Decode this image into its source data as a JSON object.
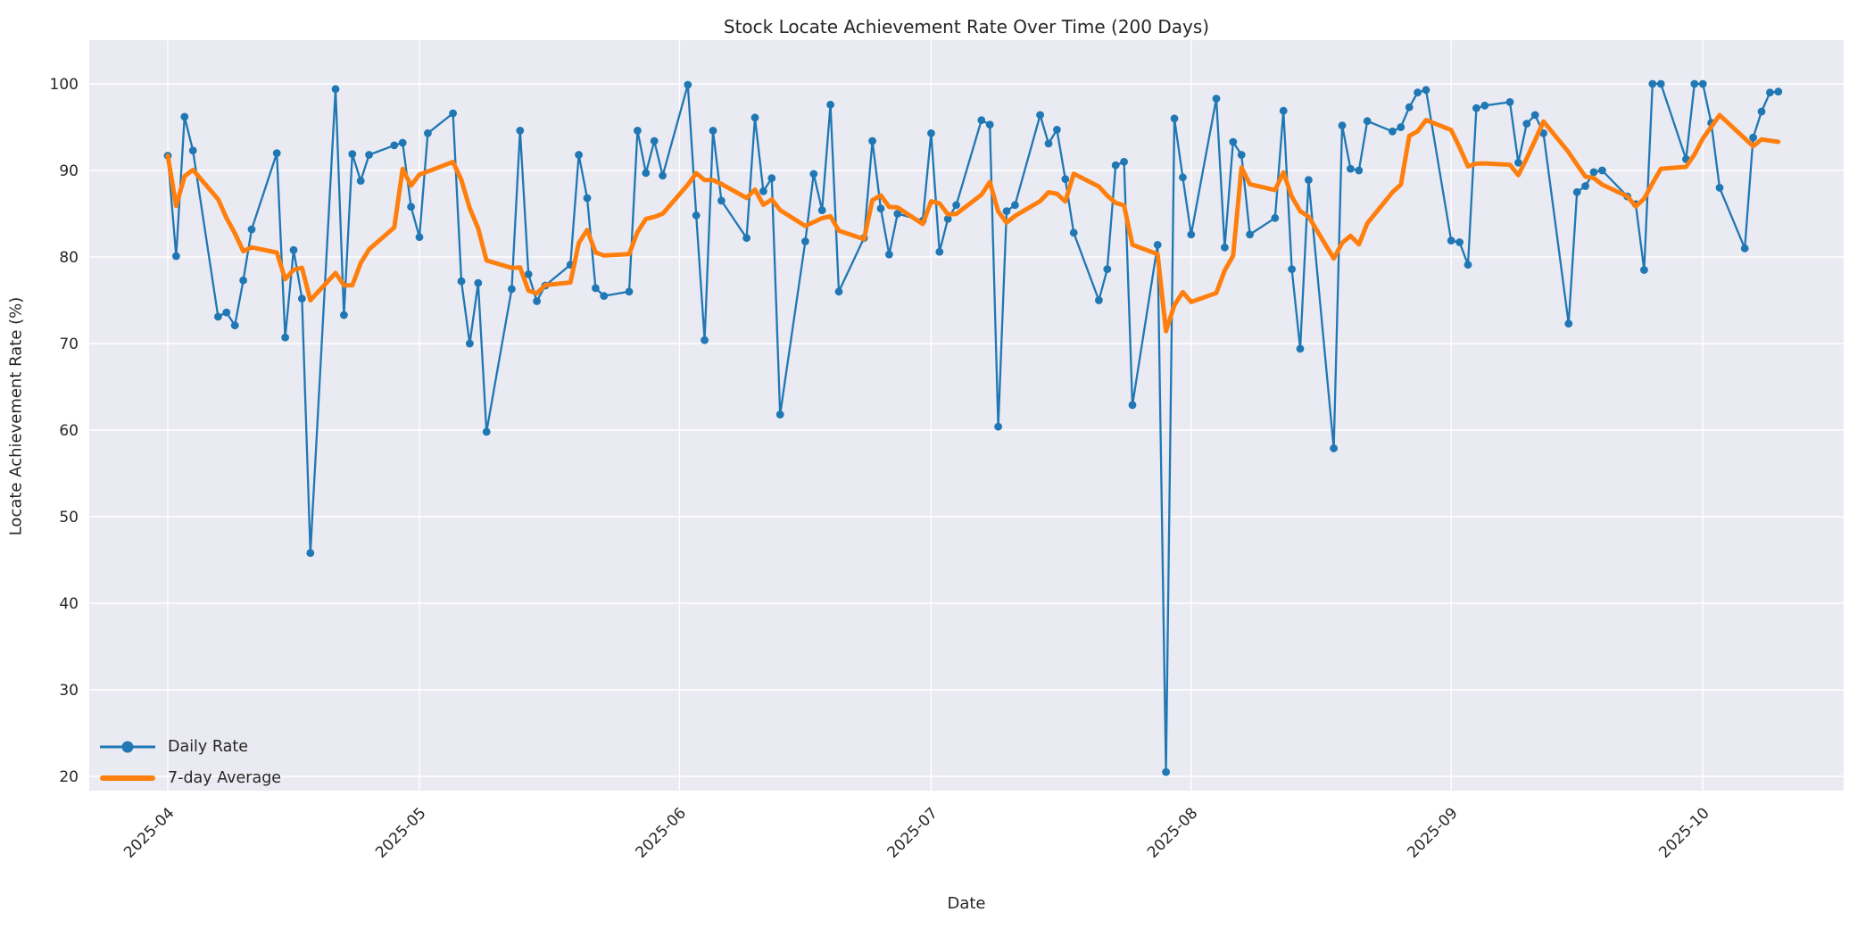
{
  "figure": {
    "title": "Stock Locate Achievement Rate Over Time (200 Days)",
    "xlabel": "Date",
    "ylabel": "Locate Achievement Rate (%)"
  },
  "legend": {
    "items": [
      {
        "label": "Daily Rate",
        "color": "#1f77b4",
        "style": "line-with-marker"
      },
      {
        "label": "7-day Average",
        "color": "#ff7f0e",
        "style": "thick-line"
      }
    ]
  },
  "colors": {
    "daily_line": "#1f77b4",
    "average_line": "#ff7f0e",
    "plot_background": "#eaeaf2",
    "grid": "#ffffff",
    "text": "#262626"
  },
  "chart_data": {
    "type": "line",
    "title": "Stock Locate Achievement Rate Over Time (200 Days)",
    "xlabel": "Date",
    "ylabel": "Locate Achievement Rate (%)",
    "grid": true,
    "legend_position": "lower left",
    "x_tick_labels": [
      "2025-04",
      "2025-05",
      "2025-06",
      "2025-07",
      "2025-08",
      "2025-09",
      "2025-10"
    ],
    "y_ticks": [
      20,
      30,
      40,
      50,
      60,
      70,
      80,
      90,
      100
    ],
    "ylim": [
      18.3,
      105.2
    ],
    "series": [
      {
        "name": "Daily Rate",
        "color": "#1f77b4",
        "marker": "circle",
        "dates": [
          "2025-04-01",
          "2025-04-02",
          "2025-04-03",
          "2025-04-04",
          "2025-04-07",
          "2025-04-08",
          "2025-04-09",
          "2025-04-10",
          "2025-04-11",
          "2025-04-14",
          "2025-04-15",
          "2025-04-16",
          "2025-04-17",
          "2025-04-18",
          "2025-04-21",
          "2025-04-22",
          "2025-04-23",
          "2025-04-24",
          "2025-04-25",
          "2025-04-28",
          "2025-04-29",
          "2025-04-30",
          "2025-05-01",
          "2025-05-02",
          "2025-05-05",
          "2025-05-06",
          "2025-05-07",
          "2025-05-08",
          "2025-05-09",
          "2025-05-12",
          "2025-05-13",
          "2025-05-14",
          "2025-05-15",
          "2025-05-16",
          "2025-05-19",
          "2025-05-20",
          "2025-05-21",
          "2025-05-22",
          "2025-05-23",
          "2025-05-26",
          "2025-05-27",
          "2025-05-28",
          "2025-05-29",
          "2025-05-30",
          "2025-06-02",
          "2025-06-03",
          "2025-06-04",
          "2025-06-05",
          "2025-06-06",
          "2025-06-09",
          "2025-06-10",
          "2025-06-11",
          "2025-06-12",
          "2025-06-13",
          "2025-06-16",
          "2025-06-17",
          "2025-06-18",
          "2025-06-19",
          "2025-06-20",
          "2025-06-23",
          "2025-06-24",
          "2025-06-25",
          "2025-06-26",
          "2025-06-27",
          "2025-06-30",
          "2025-07-01",
          "2025-07-02",
          "2025-07-03",
          "2025-07-04",
          "2025-07-07",
          "2025-07-08",
          "2025-07-09",
          "2025-07-10",
          "2025-07-11",
          "2025-07-14",
          "2025-07-15",
          "2025-07-16",
          "2025-07-17",
          "2025-07-18",
          "2025-07-21",
          "2025-07-22",
          "2025-07-23",
          "2025-07-24",
          "2025-07-25",
          "2025-07-28",
          "2025-07-29",
          "2025-07-30",
          "2025-07-31",
          "2025-08-01",
          "2025-08-04",
          "2025-08-05",
          "2025-08-06",
          "2025-08-07",
          "2025-08-08",
          "2025-08-11",
          "2025-08-12",
          "2025-08-13",
          "2025-08-14",
          "2025-08-15",
          "2025-08-18",
          "2025-08-19",
          "2025-08-20",
          "2025-08-21",
          "2025-08-22",
          "2025-08-25",
          "2025-08-26",
          "2025-08-27",
          "2025-08-28",
          "2025-08-29",
          "2025-09-01",
          "2025-09-02",
          "2025-09-03",
          "2025-09-04",
          "2025-09-05",
          "2025-09-08",
          "2025-09-09",
          "2025-09-10",
          "2025-09-11",
          "2025-09-12",
          "2025-09-15",
          "2025-09-16",
          "2025-09-17",
          "2025-09-18",
          "2025-09-19",
          "2025-09-22",
          "2025-09-23",
          "2025-09-24",
          "2025-09-25",
          "2025-09-26",
          "2025-09-29",
          "2025-09-30",
          "2025-10-01",
          "2025-10-02",
          "2025-10-03",
          "2025-10-06",
          "2025-10-07",
          "2025-10-08",
          "2025-10-09",
          "2025-10-10"
        ],
        "values": [
          91.7,
          80.1,
          96.2,
          92.3,
          73.1,
          73.6,
          72.1,
          77.3,
          83.2,
          92.0,
          70.7,
          80.8,
          75.2,
          45.8,
          99.4,
          73.3,
          91.9,
          88.8,
          91.8,
          92.9,
          93.2,
          85.8,
          82.3,
          94.3,
          96.6,
          77.2,
          70.0,
          77.0,
          59.8,
          76.3,
          94.6,
          78.0,
          74.9,
          76.7,
          79.1,
          91.8,
          86.8,
          76.4,
          75.5,
          76.0,
          94.6,
          89.7,
          93.4,
          89.4,
          99.9,
          84.8,
          70.4,
          94.6,
          86.5,
          82.2,
          96.1,
          87.6,
          89.1,
          61.8,
          81.8,
          89.6,
          85.4,
          97.6,
          76.0,
          82.2,
          93.4,
          85.6,
          80.3,
          85.0,
          84.2,
          94.3,
          80.6,
          84.4,
          86.0,
          95.8,
          95.3,
          60.4,
          85.3,
          86.0,
          96.4,
          93.1,
          94.7,
          89.0,
          82.8,
          75.0,
          78.6,
          90.6,
          91.0,
          62.9,
          81.4,
          20.5,
          96.0,
          89.2,
          82.6,
          98.3,
          81.1,
          93.3,
          91.8,
          82.6,
          84.5,
          96.9,
          78.6,
          69.4,
          88.9,
          57.9,
          95.2,
          90.2,
          90.0,
          95.7,
          94.5,
          95.0,
          97.3,
          99.0,
          99.3,
          81.9,
          81.7,
          79.1,
          97.2,
          97.5,
          97.9,
          90.9,
          95.4,
          96.4,
          94.3,
          72.3,
          87.5,
          88.2,
          89.8,
          90.0,
          87.0,
          86.1,
          78.5,
          100.0,
          100.0,
          91.3,
          100.0,
          100.0,
          95.5,
          88.0,
          81.0,
          93.8,
          96.8,
          99.0,
          99.1
        ]
      },
      {
        "name": "7-day Average",
        "color": "#ff7f0e",
        "marker": "none",
        "derived": "rolling mean of Daily Rate, window 7, min_periods 1"
      }
    ]
  }
}
